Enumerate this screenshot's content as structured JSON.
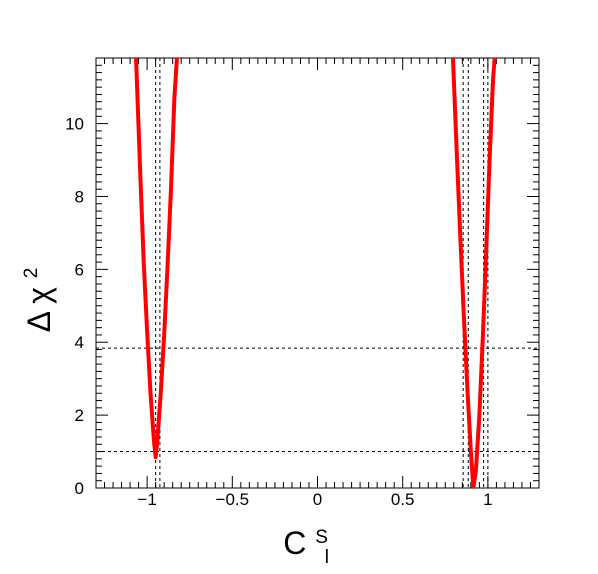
{
  "chart_data": {
    "type": "line",
    "title": "",
    "xlabel": {
      "base": "C",
      "superscript": "S",
      "subscript": "l"
    },
    "ylabel": {
      "base": "Δ χ",
      "superscript": "2"
    },
    "xlim": [
      -1.3,
      1.3
    ],
    "ylim": [
      0,
      11.8
    ],
    "x_ticks": [
      -1,
      -0.5,
      0,
      0.5,
      1
    ],
    "x_tick_labels": [
      "−1",
      "−0.5",
      "0",
      "0.5",
      "1"
    ],
    "y_ticks": [
      0,
      2,
      4,
      6,
      8,
      10
    ],
    "y_tick_labels": [
      "0",
      "2",
      "4",
      "6",
      "8",
      "10"
    ],
    "series": [
      {
        "color": "#ff0000",
        "segments": [
          {
            "x": [
              -1.065,
              -1.04,
              -1.02,
              -1.0,
              -0.98,
              -0.96,
              -0.95,
              -0.94,
              -0.92,
              -0.9,
              -0.88,
              -0.86,
              -0.84,
              -0.825
            ],
            "y": [
              11.8,
              8.6,
              6.2,
              4.3,
              2.6,
              1.3,
              0.85,
              1.3,
              2.6,
              4.2,
              6.1,
              8.2,
              10.7,
              11.8
            ]
          },
          {
            "x": [
              0.795,
              0.82,
              0.84,
              0.86,
              0.88,
              0.9,
              0.915,
              0.93,
              0.95,
              0.97,
              0.99,
              1.01,
              1.03,
              1.04
            ],
            "y": [
              11.8,
              8.9,
              6.7,
              4.6,
              2.7,
              1.0,
              0.0,
              0.5,
              2.0,
              4.1,
              6.5,
              9.0,
              11.2,
              11.8
            ]
          }
        ]
      }
    ],
    "reference_lines": {
      "horizontal_y": [
        1,
        3.84
      ],
      "vertical_x": [
        -0.95,
        -0.925,
        0.855,
        0.885,
        0.975,
        1.0
      ]
    }
  }
}
